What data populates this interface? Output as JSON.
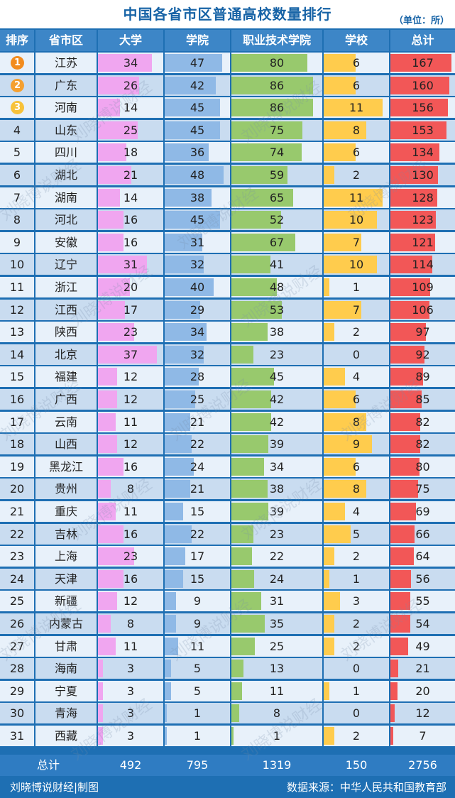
{
  "title": "中国各省市区普通高校数量排行",
  "unit": "（单位：所）",
  "headers": [
    "排序",
    "省市区",
    "大学",
    "学院",
    "职业技术学院",
    "学校",
    "总计"
  ],
  "colors": {
    "university": "#f0a6f0",
    "college": "#8fb9e6",
    "vocational": "#98c96d",
    "school": "#ffcc4d",
    "total": "#f25757",
    "medal1": "#f28c1f",
    "medal2": "#f5a030",
    "medal3": "#f7c23a",
    "row_light": "#e8f1fa",
    "row_dark": "#c9dcf0"
  },
  "chart_data": {
    "type": "table",
    "columns": [
      "排序",
      "省市区",
      "大学",
      "学院",
      "职业技术学院",
      "学校",
      "总计"
    ],
    "rows": [
      {
        "rank": "1",
        "province": "江苏",
        "university": 34,
        "college": 47,
        "vocational": 80,
        "school": 6,
        "total": 167
      },
      {
        "rank": "2",
        "province": "广东",
        "university": 26,
        "college": 42,
        "vocational": 86,
        "school": 6,
        "total": 160
      },
      {
        "rank": "3",
        "province": "河南",
        "university": 14,
        "college": 45,
        "vocational": 86,
        "school": 11,
        "total": 156
      },
      {
        "rank": "4",
        "province": "山东",
        "university": 25,
        "college": 45,
        "vocational": 75,
        "school": 8,
        "total": 153
      },
      {
        "rank": "5",
        "province": "四川",
        "university": 18,
        "college": 36,
        "vocational": 74,
        "school": 6,
        "total": 134
      },
      {
        "rank": "6",
        "province": "湖北",
        "university": 21,
        "college": 48,
        "vocational": 59,
        "school": 2,
        "total": 130
      },
      {
        "rank": "7",
        "province": "湖南",
        "university": 14,
        "college": 38,
        "vocational": 65,
        "school": 11,
        "total": 128
      },
      {
        "rank": "8",
        "province": "河北",
        "university": 16,
        "college": 45,
        "vocational": 52,
        "school": 10,
        "total": 123
      },
      {
        "rank": "9",
        "province": "安徽",
        "university": 16,
        "college": 31,
        "vocational": 67,
        "school": 7,
        "total": 121
      },
      {
        "rank": "10",
        "province": "辽宁",
        "university": 31,
        "college": 32,
        "vocational": 41,
        "school": 10,
        "total": 114
      },
      {
        "rank": "11",
        "province": "浙江",
        "university": 20,
        "college": 40,
        "vocational": 48,
        "school": 1,
        "total": 109
      },
      {
        "rank": "12",
        "province": "江西",
        "university": 17,
        "college": 29,
        "vocational": 53,
        "school": 7,
        "total": 106
      },
      {
        "rank": "13",
        "province": "陕西",
        "university": 23,
        "college": 34,
        "vocational": 38,
        "school": 2,
        "total": 97
      },
      {
        "rank": "14",
        "province": "北京",
        "university": 37,
        "college": 32,
        "vocational": 23,
        "school": 0,
        "total": 92
      },
      {
        "rank": "15",
        "province": "福建",
        "university": 12,
        "college": 28,
        "vocational": 45,
        "school": 4,
        "total": 89
      },
      {
        "rank": "16",
        "province": "广西",
        "university": 12,
        "college": 25,
        "vocational": 42,
        "school": 6,
        "total": 85
      },
      {
        "rank": "17",
        "province": "云南",
        "university": 11,
        "college": 21,
        "vocational": 42,
        "school": 8,
        "total": 82
      },
      {
        "rank": "18",
        "province": "山西",
        "university": 12,
        "college": 22,
        "vocational": 39,
        "school": 9,
        "total": 82
      },
      {
        "rank": "19",
        "province": "黑龙江",
        "university": 16,
        "college": 24,
        "vocational": 34,
        "school": 6,
        "total": 80
      },
      {
        "rank": "20",
        "province": "贵州",
        "university": 8,
        "college": 21,
        "vocational": 38,
        "school": 8,
        "total": 75
      },
      {
        "rank": "21",
        "province": "重庆",
        "university": 11,
        "college": 15,
        "vocational": 39,
        "school": 4,
        "total": 69
      },
      {
        "rank": "22",
        "province": "吉林",
        "university": 16,
        "college": 22,
        "vocational": 23,
        "school": 5,
        "total": 66
      },
      {
        "rank": "23",
        "province": "上海",
        "university": 23,
        "college": 17,
        "vocational": 22,
        "school": 2,
        "total": 64
      },
      {
        "rank": "24",
        "province": "天津",
        "university": 16,
        "college": 15,
        "vocational": 24,
        "school": 1,
        "total": 56
      },
      {
        "rank": "25",
        "province": "新疆",
        "university": 12,
        "college": 9,
        "vocational": 31,
        "school": 3,
        "total": 55
      },
      {
        "rank": "26",
        "province": "内蒙古",
        "university": 8,
        "college": 9,
        "vocational": 35,
        "school": 2,
        "total": 54
      },
      {
        "rank": "27",
        "province": "甘肃",
        "university": 11,
        "college": 11,
        "vocational": 25,
        "school": 2,
        "total": 49
      },
      {
        "rank": "28",
        "province": "海南",
        "university": 3,
        "college": 5,
        "vocational": 13,
        "school": 0,
        "total": 21
      },
      {
        "rank": "29",
        "province": "宁夏",
        "university": 3,
        "college": 5,
        "vocational": 11,
        "school": 1,
        "total": 20
      },
      {
        "rank": "30",
        "province": "青海",
        "university": 3,
        "college": 1,
        "vocational": 8,
        "school": 0,
        "total": 12
      },
      {
        "rank": "31",
        "province": "西藏",
        "university": 3,
        "college": 1,
        "vocational": 1,
        "school": 2,
        "total": 7
      }
    ],
    "totals": {
      "label": "总计",
      "university": 492,
      "college": 795,
      "vocational": 1319,
      "school": 150,
      "total": 2756
    }
  },
  "footer": {
    "credit": "刘晓博说财经|制图",
    "source": "数据来源：中华人民共和国教育部"
  },
  "watermark": "刘晓博说财经"
}
